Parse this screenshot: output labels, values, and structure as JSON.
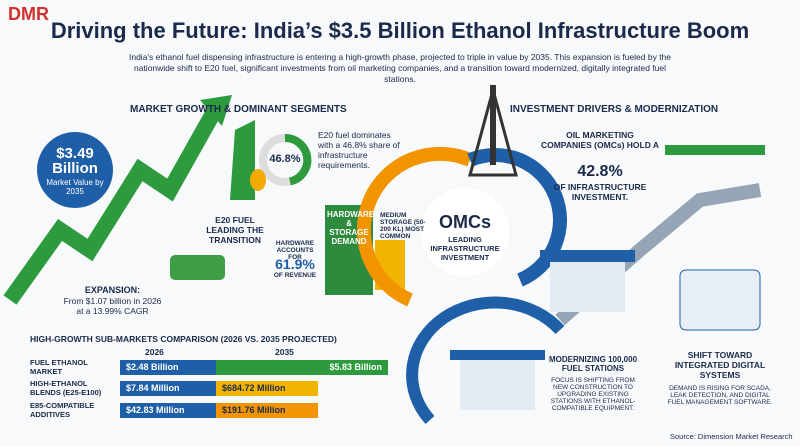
{
  "header": {
    "logo": "DMR",
    "title": "Driving the Future: India’s $3.5 Billion Ethanol Infrastructure Boom",
    "subtitle": "India's ethanol fuel dispensing infrastructure is entering a high-growth phase, projected to triple in value by 2035. This expansion is fueled by the nationwide shift to E20 fuel, significant investments from oil marketing companies, and a transition toward modernized, digitally integrated fuel stations."
  },
  "left": {
    "heading": "MARKET GROWTH & DOMINANT SEGMENTS",
    "market_value": "$3.49 Billion",
    "market_value_note": "Market Value by 2035",
    "e20_share": "46.8%",
    "e20_note": "E20 fuel dominates with a 46.8% share of infrastructure requirements.",
    "e20_label": "E20 FUEL LEADING THE TRANSITION",
    "hardware_title": "HARDWARE & STORAGE DEMAND",
    "hardware_pre": "HARDWARE ACCOUNTS FOR",
    "hardware_share": "61.9%",
    "hardware_post": "OF REVENUE",
    "storage_note": "MEDIUM STORAGE (50-200 KL) MOST COMMON",
    "expansion_title": "EXPANSION:",
    "expansion_text": "From $1.07 billion in 2026 at a 13.99% CAGR"
  },
  "comparison": {
    "heading": "HIGH-GROWTH SUB-MARKETS COMPARISON (2026 VS. 2035 PROJECTED)",
    "columns": [
      "2026",
      "2035"
    ],
    "rows": [
      [
        "FUEL ETHANOL MARKET",
        "$2.48 Billion",
        "$5.83 Billion"
      ],
      [
        "HIGH-ETHANOL BLENDS (E25-E100)",
        "$7.84 Million",
        "$684.72 Million"
      ],
      [
        "E85-COMPATIBLE ADDITIVES",
        "$42.83 Million",
        "$191.76 Million"
      ]
    ]
  },
  "right": {
    "heading": "INVESTMENT DRIVERS & MODERNIZATION",
    "omc_pre": "OIL MARKETING COMPANIES (OMCs) HOLD A",
    "omc_share": "42.8%",
    "omc_post": "OF INFRASTRUCTURE INVESTMENT.",
    "omc_badge": "OMCs",
    "omc_badge_note": "LEADING INFRASTRUCTURE INVESTMENT",
    "stations_title": "MODERNIZING 100,000 FUEL STATIONS",
    "stations_text": "FOCUS IS SHIFTING FROM NEW CONSTRUCTION TO UPGRADING EXISTING STATIONS WITH ETHANOL-COMPATIBLE EQUIPMENT.",
    "digital_title": "SHIFT TOWARD INTEGRATED DIGITAL SYSTEMS",
    "digital_text": "DEMAND IS RISING FOR SCADA, LEAK DETECTION, AND DIGITAL FUEL MANAGEMENT SOFTWARE."
  },
  "footer": {
    "source": "Source: Dimension Market Research"
  }
}
